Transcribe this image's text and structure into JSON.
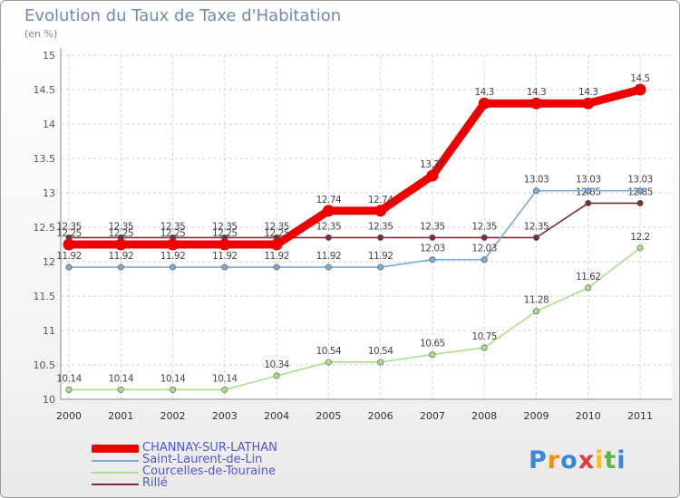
{
  "chart_data": {
    "type": "line",
    "title": "Evolution du Taux de Taxe d'Habitation",
    "subtitle": "(en %)",
    "x": [
      "2000",
      "2001",
      "2002",
      "2003",
      "2004",
      "2005",
      "2006",
      "2007",
      "2008",
      "2009",
      "2010",
      "2011"
    ],
    "ylim": [
      10,
      15
    ],
    "yticks": [
      "10",
      "10.5",
      "11",
      "11.5",
      "12",
      "12.5",
      "13",
      "13.5",
      "14",
      "14.5",
      "15"
    ],
    "grid": true,
    "legend_position": "bottom-left",
    "series": [
      {
        "name": "Rillé",
        "color": "#7a2e35",
        "values": [
          12.35,
          12.35,
          12.35,
          12.35,
          12.35,
          12.35,
          12.35,
          12.35,
          12.35,
          12.35,
          12.85,
          12.85
        ],
        "labels": [
          "12.35",
          "12.35",
          "12.35",
          "12.35",
          "12.35",
          "12.35",
          "12.35",
          "12.35",
          "12.35",
          "12.35",
          "12.85",
          "12.85"
        ]
      },
      {
        "name": "Saint-Laurent-de-Lin",
        "color": "#7aaad8",
        "values": [
          11.92,
          11.92,
          11.92,
          11.92,
          11.92,
          11.92,
          11.92,
          12.03,
          12.03,
          13.03,
          13.03,
          13.03
        ],
        "labels": [
          "11.92",
          "11.92",
          "11.92",
          "11.92",
          "11.92",
          "11.92",
          "11.92",
          "12.03",
          "12.03",
          "13.03",
          "13.03",
          "13.03"
        ]
      },
      {
        "name": "Courcelles-de-Touraine",
        "color": "#a8e08a",
        "values": [
          10.14,
          10.14,
          10.14,
          10.14,
          10.34,
          10.54,
          10.54,
          10.65,
          10.75,
          11.28,
          11.62,
          12.2
        ],
        "labels": [
          "10.14",
          "10.14",
          "10.14",
          "10.14",
          "10.34",
          "10.54",
          "10.54",
          "10.65",
          "10.75",
          "11.28",
          "11.62",
          "12.2"
        ]
      },
      {
        "name": "CHANNAY-SUR-LATHAN",
        "color": "#ee0000",
        "values": [
          12.25,
          12.25,
          12.25,
          12.25,
          12.25,
          12.74,
          12.74,
          13.25,
          14.3,
          14.3,
          14.3,
          14.5
        ],
        "labels": [
          "12.25",
          "12.25",
          "12.25",
          "12.25",
          "12.25",
          "12.74",
          "12.74",
          "13.25",
          "14.3",
          "14.3",
          "14.3",
          "14.5"
        ]
      }
    ],
    "legend_order": [
      "CHANNAY-SUR-LATHAN",
      "Saint-Laurent-de-Lin",
      "Courcelles-de-Touraine",
      "Rillé"
    ]
  },
  "logo": {
    "letters": [
      "P",
      "r",
      "o",
      "x",
      "i",
      "t",
      "i"
    ],
    "colors": [
      "#3a86d9",
      "#f28c1c",
      "#3a86d9",
      "#e83a3a",
      "#f2c01c",
      "#58b848",
      "#3a86d9"
    ]
  }
}
